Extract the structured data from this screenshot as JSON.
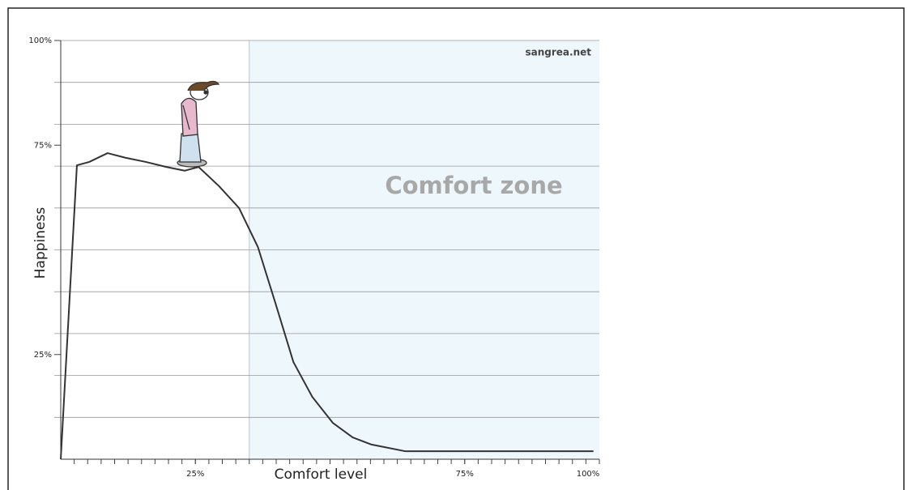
{
  "chart_data": {
    "type": "line",
    "x_label": "Comfort level",
    "y_label": "Happiness",
    "watermark": "sangrea.net",
    "x": [
      0,
      3,
      5.3,
      8.7,
      12,
      15.8,
      19.6,
      23,
      25.6,
      29.4,
      33.1,
      36.6,
      39.9,
      43.2,
      46.7,
      50.5,
      54.2,
      57.7,
      64,
      98.9
    ],
    "series": [
      {
        "color": "#333333",
        "values": [
          0,
          70.2,
          71,
          73.1,
          72,
          71,
          69.8,
          68.9,
          69.8,
          65.2,
          60,
          50.7,
          37.1,
          23.2,
          14.9,
          8.7,
          5.2,
          3.5,
          1.9,
          1.9
        ]
      }
    ],
    "xlim": [
      0,
      100
    ],
    "ylim": [
      0,
      100
    ],
    "xticks": [
      {
        "value": 25,
        "label": "25%"
      },
      {
        "value": 75,
        "label": "75%"
      },
      {
        "value": 100,
        "label": "100%"
      }
    ],
    "yticks": [
      {
        "value": 25,
        "label": "25%"
      },
      {
        "value": 75,
        "label": "75%"
      },
      {
        "value": 100,
        "label": "100%"
      }
    ],
    "x_minor_ticks": [
      2.5,
      5,
      7.5,
      10,
      12.5,
      15,
      17.5,
      20,
      22.5,
      25,
      27.5,
      30,
      32.5,
      35,
      37.5,
      40,
      42.5,
      45,
      47.5,
      50,
      52.5,
      55,
      57.5,
      60,
      62.5,
      65,
      67.5,
      70,
      72.5,
      75,
      77.5,
      80,
      82.5,
      85,
      87.5,
      90,
      92.5,
      95,
      97.5,
      100
    ],
    "y_gridlines": [
      10,
      20,
      30,
      40,
      50,
      60,
      70,
      80,
      90,
      100
    ],
    "grid": true,
    "shaded_region": {
      "label": "Comfort zone",
      "x_start": 35,
      "x_end": 100,
      "color": "#eef7fb"
    }
  }
}
